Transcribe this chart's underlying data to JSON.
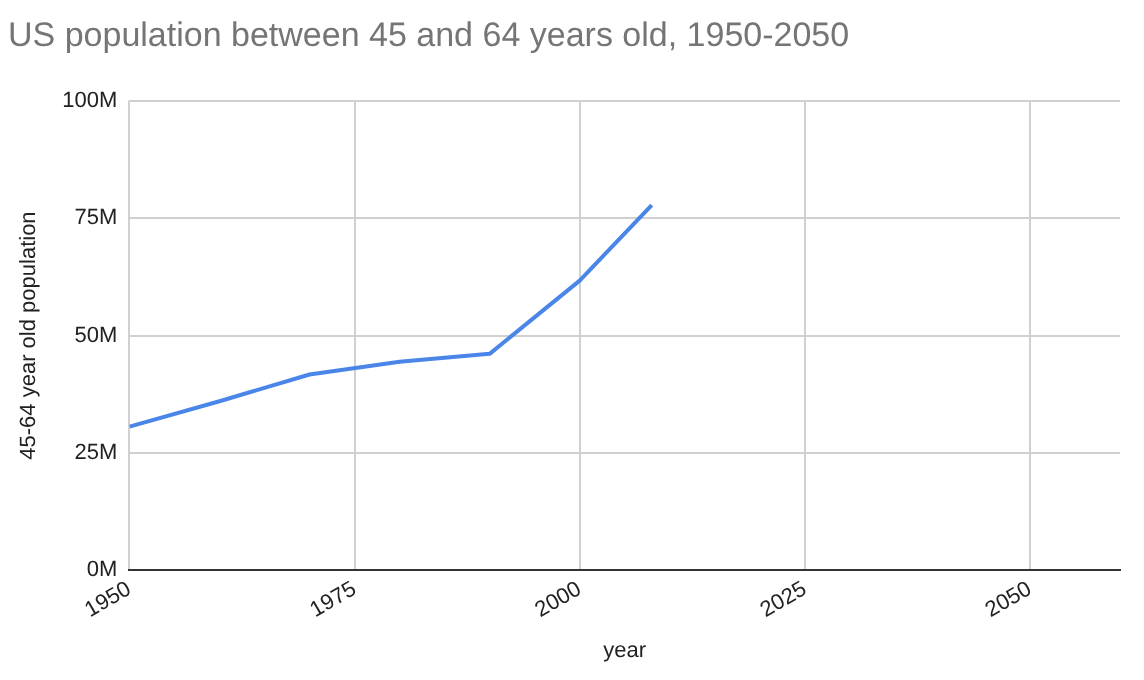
{
  "chart_data": {
    "type": "line",
    "title": "US population between 45 and 64 years old, 1950-2050",
    "xlabel": "year",
    "ylabel": "45-64 year old population",
    "x": [
      1950,
      1960,
      1970,
      1980,
      1990,
      2000,
      2008
    ],
    "series": [
      {
        "color": "#4a86e8",
        "values": [
          30.6,
          36,
          41.7,
          44.4,
          46.1,
          61.7,
          77.8
        ]
      }
    ],
    "xlim": [
      1950,
      2060
    ],
    "xticks": [
      1950,
      1975,
      2000,
      2025,
      2050
    ],
    "ylim": [
      0,
      100
    ],
    "yticks": [
      {
        "value": 0,
        "label": "0M"
      },
      {
        "value": 25,
        "label": "25M"
      },
      {
        "value": 50,
        "label": "50M"
      },
      {
        "value": 75,
        "label": "75M"
      },
      {
        "value": 100,
        "label": "100M"
      }
    ],
    "grid": true,
    "legend": false,
    "marker": "none",
    "line_style": "solid"
  }
}
